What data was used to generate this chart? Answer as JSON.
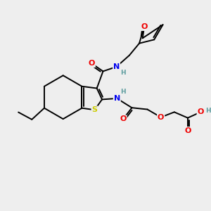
{
  "background_color": "#eeeeee",
  "atom_colors": {
    "C": "#000000",
    "N": "#0000ee",
    "O": "#ee0000",
    "S": "#cccc00",
    "H": "#5f9ea0"
  },
  "figsize": [
    3.0,
    3.0
  ],
  "dpi": 100
}
